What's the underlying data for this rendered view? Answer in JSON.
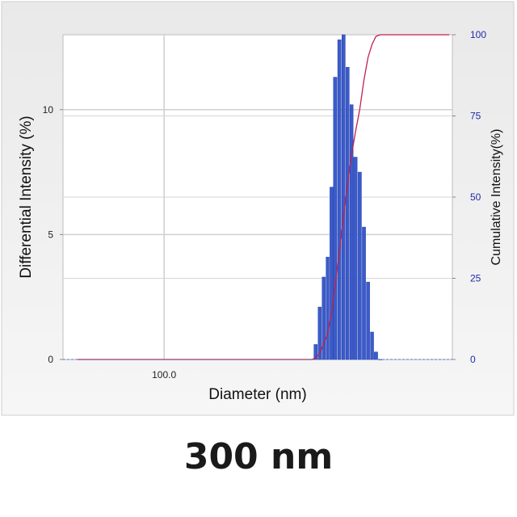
{
  "caption": "300 nm",
  "chart_data": {
    "type": "bar",
    "title": "",
    "xlabel": "Diameter (nm)",
    "ylabel": "Differential Intensity (%)",
    "y2label": "Cumulative Intensity(%)",
    "xscale": "log",
    "xlim": [
      55,
      550
    ],
    "ylim": [
      0,
      13
    ],
    "y2lim": [
      0,
      100
    ],
    "grid": true,
    "x_tick_labels": [
      {
        "value": 100,
        "label": "100.0"
      }
    ],
    "y_ticks": [
      0,
      5,
      10
    ],
    "y2_ticks": [
      0,
      25,
      50,
      75,
      100
    ],
    "bar_series": {
      "name": "Differential Intensity",
      "color": "#3b5bcb",
      "x": [
        245,
        251,
        257,
        263,
        269,
        275,
        282,
        289,
        296,
        303,
        310,
        318,
        326,
        334,
        342,
        350,
        359
      ],
      "values": [
        0.6,
        2.1,
        3.3,
        4.1,
        6.9,
        11.3,
        12.8,
        13.0,
        11.7,
        10.2,
        8.1,
        7.5,
        5.3,
        3.1,
        1.1,
        0.3,
        0.0
      ]
    },
    "cumulative_series": {
      "name": "Cumulative Intensity",
      "color": "#c0204e",
      "x": [
        60,
        240,
        245,
        251,
        257,
        263,
        269,
        275,
        282,
        289,
        296,
        303,
        310,
        318,
        326,
        334,
        342,
        350,
        359,
        540
      ],
      "values": [
        0,
        0,
        0.5,
        2,
        5,
        8,
        14,
        23,
        33,
        44,
        54,
        63,
        70,
        77,
        86,
        93,
        97,
        99.5,
        100,
        100
      ]
    }
  }
}
